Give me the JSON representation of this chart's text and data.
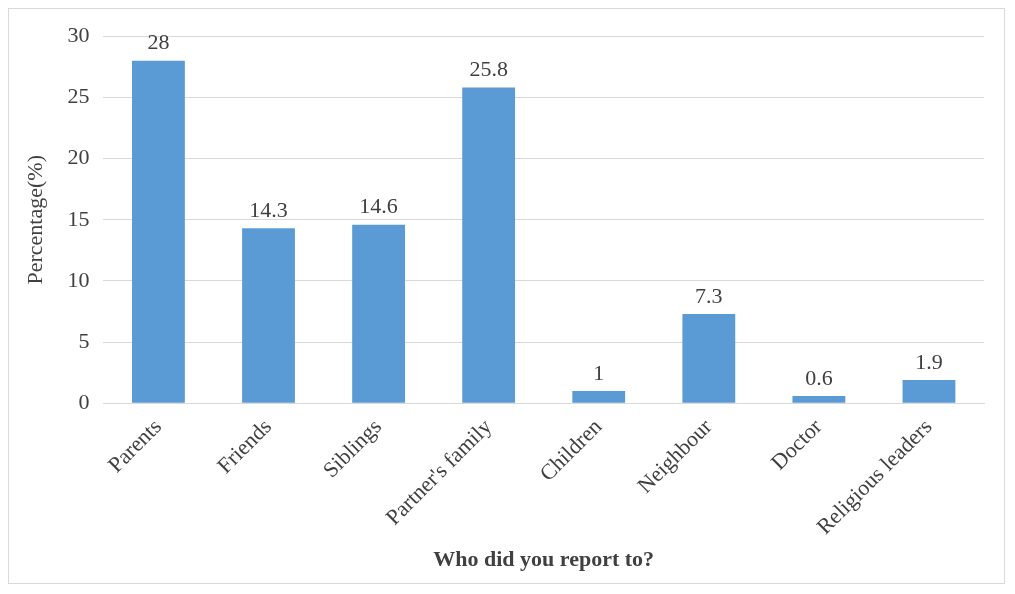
{
  "chart_data": {
    "type": "bar",
    "xlabel": "Who did you report to?",
    "ylabel": "Percentage(%)",
    "categories": [
      "Parents",
      "Friends",
      "Siblings",
      "Partner's family",
      "Children",
      "Neighbour",
      "Doctor",
      "Religious leaders"
    ],
    "values": [
      28,
      14.3,
      14.6,
      25.8,
      1,
      7.3,
      0.6,
      1.9
    ],
    "color": "#5b9bd5",
    "ylim": [
      0,
      30
    ],
    "yticks": [
      0,
      5,
      10,
      15,
      20,
      25,
      30
    ],
    "grid": "y",
    "data_labels": true,
    "legend": false
  }
}
